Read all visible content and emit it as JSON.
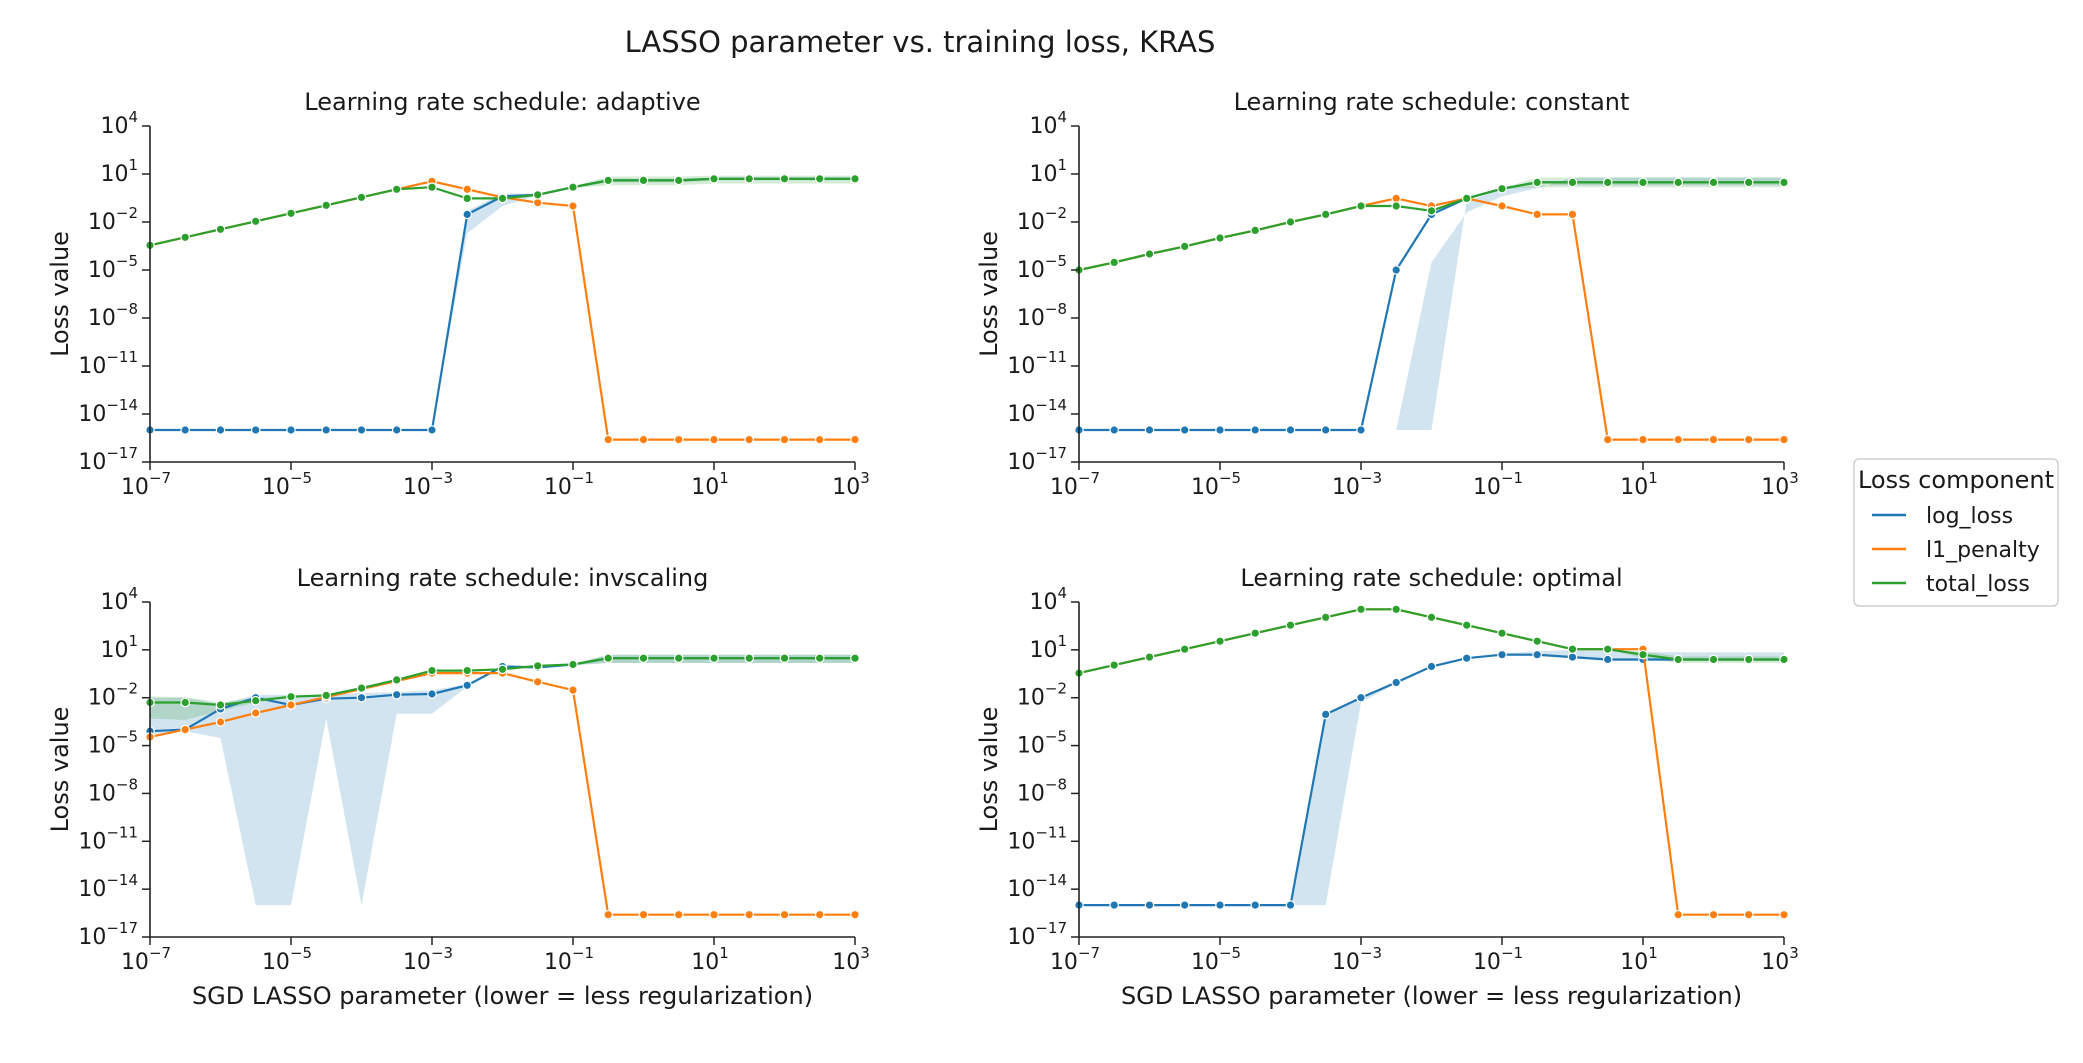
{
  "chart_data": {
    "type": "line",
    "title": "LASSO parameter vs. training loss, KRAS",
    "xscale": "log",
    "yscale": "log",
    "x": [
      1e-07,
      3.162e-07,
      1e-06,
      3.162e-06,
      1e-05,
      3.162e-05,
      0.0001,
      0.0003162,
      0.001,
      0.003162,
      0.01,
      0.03162,
      0.1,
      0.3162,
      1,
      3.162,
      10,
      31.62,
      100,
      316.2,
      1000
    ],
    "xlabel": "SGD LASSO parameter (lower = less regularization)",
    "ylabel": "Loss value",
    "xlim": [
      1e-07,
      1000
    ],
    "ylim": [
      1e-17,
      10000
    ],
    "xticks": [
      {
        "value": 1e-07,
        "base": "10",
        "exp": "−7"
      },
      {
        "value": 1e-05,
        "base": "10",
        "exp": "−5"
      },
      {
        "value": 0.001,
        "base": "10",
        "exp": "−3"
      },
      {
        "value": 0.1,
        "base": "10",
        "exp": "−1"
      },
      {
        "value": 10,
        "base": "10",
        "exp": "1"
      },
      {
        "value": 1000,
        "base": "10",
        "exp": "3"
      }
    ],
    "yticks": [
      {
        "value": 1e-17,
        "base": "10",
        "exp": "−17"
      },
      {
        "value": 1e-14,
        "base": "10",
        "exp": "−14"
      },
      {
        "value": 1e-11,
        "base": "10",
        "exp": "−11"
      },
      {
        "value": 1e-08,
        "base": "10",
        "exp": "−8"
      },
      {
        "value": 1e-05,
        "base": "10",
        "exp": "−5"
      },
      {
        "value": 0.01,
        "base": "10",
        "exp": "−2"
      },
      {
        "value": 10,
        "base": "10",
        "exp": "1"
      },
      {
        "value": 10000,
        "base": "10",
        "exp": "4"
      }
    ],
    "grid": false,
    "legend": {
      "title": "Loss component",
      "placement": "right",
      "entries": [
        {
          "name": "log_loss",
          "color": "#1f77b4"
        },
        {
          "name": "l1_penalty",
          "color": "#ff7f0e"
        },
        {
          "name": "total_loss",
          "color": "#2ca02c"
        }
      ]
    },
    "panels": [
      {
        "title": "Learning rate schedule: adaptive",
        "series": [
          {
            "name": "log_loss",
            "color": "#1f77b4",
            "values": [
              1e-15,
              1e-15,
              1e-15,
              1e-15,
              1e-15,
              1e-15,
              1e-15,
              1e-15,
              1e-15,
              0.03,
              0.4,
              0.5,
              1.5,
              4,
              4,
              4,
              5,
              5,
              5,
              5,
              5
            ],
            "band_low": [
              1e-15,
              1e-15,
              1e-15,
              1e-15,
              1e-15,
              1e-15,
              1e-15,
              1e-15,
              1e-15,
              0.002,
              0.1,
              0.45,
              1.3,
              3,
              3,
              3,
              4,
              4,
              4,
              4,
              4
            ],
            "band_high": [
              1e-15,
              1e-15,
              1e-15,
              1e-15,
              1e-15,
              1e-15,
              1e-15,
              1e-15,
              1e-15,
              0.05,
              0.6,
              0.6,
              1.7,
              5,
              5,
              5,
              6,
              6,
              6,
              6,
              6
            ]
          },
          {
            "name": "l1_penalty",
            "color": "#ff7f0e",
            "values": [
              0.00035,
              0.0011,
              0.0035,
              0.011,
              0.035,
              0.11,
              0.35,
              1.1,
              3.5,
              1.1,
              0.35,
              0.16,
              0.1,
              2.5e-16,
              2.5e-16,
              2.5e-16,
              2.5e-16,
              2.5e-16,
              2.5e-16,
              2.5e-16,
              2.5e-16
            ]
          },
          {
            "name": "total_loss",
            "color": "#2ca02c",
            "values": [
              0.00035,
              0.0011,
              0.0035,
              0.011,
              0.035,
              0.11,
              0.35,
              1.1,
              1.5,
              0.3,
              0.3,
              0.5,
              1.5,
              4,
              4,
              4,
              5,
              5,
              5,
              5,
              5
            ],
            "band_low": [
              0.00035,
              0.0011,
              0.0035,
              0.011,
              0.035,
              0.11,
              0.35,
              1.1,
              1.5,
              0.3,
              0.3,
              0.5,
              1.3,
              2,
              2,
              2,
              2.5,
              2.5,
              2.5,
              2.5,
              2.5
            ],
            "band_high": [
              0.00035,
              0.0011,
              0.0035,
              0.011,
              0.035,
              0.11,
              0.35,
              1.1,
              1.5,
              0.3,
              0.3,
              0.6,
              1.7,
              7,
              7,
              7,
              8,
              8,
              8,
              8,
              8
            ]
          }
        ]
      },
      {
        "title": "Learning rate schedule: constant",
        "series": [
          {
            "name": "log_loss",
            "color": "#1f77b4",
            "values": [
              1e-15,
              1e-15,
              1e-15,
              1e-15,
              1e-15,
              1e-15,
              1e-15,
              1e-15,
              1e-15,
              1e-05,
              0.03,
              0.3,
              1.2,
              3,
              3,
              3,
              3,
              3,
              3,
              3,
              3
            ],
            "band_low": [
              1e-15,
              1e-15,
              1e-15,
              1e-15,
              1e-15,
              1e-15,
              1e-15,
              1e-15,
              1e-15,
              1e-15,
              1e-15,
              0.2,
              1.1,
              2,
              2,
              2,
              2,
              2,
              2,
              2,
              2
            ],
            "band_high": [
              1e-15,
              1e-15,
              1e-15,
              1e-15,
              1e-15,
              1e-15,
              1e-15,
              1e-15,
              1e-15,
              1e-15,
              3e-05,
              0.04,
              0.4,
              1.3,
              6,
              6,
              6,
              6,
              6,
              6,
              6
            ]
          },
          {
            "name": "l1_penalty",
            "color": "#ff7f0e",
            "values": [
              1e-05,
              3e-05,
              0.0001,
              0.0003,
              0.001,
              0.003,
              0.01,
              0.03,
              0.1,
              0.3,
              0.1,
              0.3,
              0.1,
              0.03,
              0.03,
              2.5e-16,
              2.5e-16,
              2.5e-16,
              2.5e-16,
              2.5e-16,
              2.5e-16
            ]
          },
          {
            "name": "total_loss",
            "color": "#2ca02c",
            "values": [
              1e-05,
              3e-05,
              0.0001,
              0.0003,
              0.001,
              0.003,
              0.01,
              0.03,
              0.1,
              0.1,
              0.05,
              0.3,
              1.2,
              3,
              3,
              3,
              3,
              3,
              3,
              3,
              3
            ],
            "band_low": [
              1e-05,
              3e-05,
              0.0001,
              0.0003,
              0.001,
              0.003,
              0.01,
              0.03,
              0.1,
              0.1,
              0.05,
              0.25,
              1.1,
              1.5,
              1.5,
              1.5,
              1.5,
              1.5,
              1.5,
              1.5,
              1.5
            ],
            "band_high": [
              1e-05,
              3e-05,
              0.0001,
              0.0003,
              0.001,
              0.003,
              0.01,
              0.03,
              0.1,
              0.1,
              0.05,
              0.35,
              1.3,
              6,
              6,
              6,
              6,
              6,
              6,
              6,
              6
            ]
          }
        ]
      },
      {
        "title": "Learning rate schedule: invscaling",
        "series": [
          {
            "name": "log_loss",
            "color": "#1f77b4",
            "values": [
              8e-05,
              0.0001,
              0.002,
              0.01,
              0.0035,
              0.0087,
              0.01,
              0.0155,
              0.017,
              0.06,
              0.9,
              0.8,
              1.2,
              3,
              3,
              3,
              3,
              3,
              3,
              3,
              3
            ],
            "band_low": [
              5e-05,
              8e-05,
              3e-05,
              1e-15,
              1e-15,
              0.0005,
              1e-15,
              0.001,
              0.001,
              0.05,
              0.8,
              0.7,
              1.1,
              1.5,
              1.5,
              1.5,
              1.5,
              1.5,
              1.5,
              1.5,
              1.5
            ],
            "band_high": [
              0.01,
              0.01,
              0.004,
              0.015,
              0.015,
              0.015,
              0.02,
              0.022,
              0.03,
              0.07,
              1,
              0.9,
              1.3,
              5,
              5,
              5,
              5,
              5,
              5,
              5,
              5
            ]
          },
          {
            "name": "l1_penalty",
            "color": "#ff7f0e",
            "values": [
              3.5e-05,
              0.0001,
              0.0003,
              0.0011,
              0.0035,
              0.011,
              0.035,
              0.11,
              0.35,
              0.35,
              0.35,
              0.1,
              0.03,
              2.5e-16,
              2.5e-16,
              2.5e-16,
              2.5e-16,
              2.5e-16,
              2.5e-16,
              2.5e-16,
              2.5e-16
            ]
          },
          {
            "name": "total_loss",
            "color": "#2ca02c",
            "values": [
              0.005,
              0.005,
              0.0035,
              0.0065,
              0.0115,
              0.014,
              0.04,
              0.13,
              0.5,
              0.5,
              0.6,
              1,
              1.2,
              3,
              3,
              3,
              3,
              3,
              3,
              3,
              3
            ],
            "band_low": [
              0.0005,
              0.0004,
              0.0015,
              0.005,
              0.01,
              0.013,
              0.035,
              0.12,
              0.45,
              0.45,
              0.55,
              0.9,
              1.1,
              1.5,
              1.5,
              1.5,
              1.5,
              1.5,
              1.5,
              1.5,
              1.5
            ],
            "band_high": [
              0.012,
              0.011,
              0.005,
              0.01,
              0.013,
              0.015,
              0.045,
              0.14,
              0.55,
              0.55,
              0.65,
              1.1,
              1.3,
              5,
              5,
              5,
              5,
              5,
              5,
              5,
              5
            ]
          }
        ]
      },
      {
        "title": "Learning rate schedule: optimal",
        "series": [
          {
            "name": "log_loss",
            "color": "#1f77b4",
            "values": [
              1e-15,
              1e-15,
              1e-15,
              1e-15,
              1e-15,
              1e-15,
              1e-15,
              0.0009,
              0.01,
              0.09,
              0.9,
              3,
              5,
              5,
              3.5,
              2.5,
              2.5,
              2.5,
              2.5,
              2.5,
              2.5
            ],
            "band_low": [
              1e-15,
              1e-15,
              1e-15,
              1e-15,
              1e-15,
              1e-15,
              1e-15,
              1e-15,
              0.005,
              0.08,
              0.8,
              2.8,
              4.5,
              4,
              3,
              2,
              2,
              2,
              2,
              2,
              2
            ],
            "band_high": [
              1e-15,
              1e-15,
              1e-15,
              1e-15,
              1e-15,
              1e-15,
              1e-15,
              0.001,
              0.012,
              0.1,
              1,
              3.2,
              6,
              8,
              10,
              10,
              7,
              7,
              7,
              7,
              7
            ]
          },
          {
            "name": "l1_penalty",
            "color": "#ff7f0e",
            "values": [
              0.35,
              1.1,
              3.5,
              11,
              35,
              110,
              350,
              1100,
              3500,
              3500,
              1100,
              350,
              110,
              35,
              11,
              11,
              11,
              2.5e-16,
              2.5e-16,
              2.5e-16,
              2.5e-16
            ]
          },
          {
            "name": "total_loss",
            "color": "#2ca02c",
            "values": [
              0.35,
              1.1,
              3.5,
              11,
              35,
              110,
              350,
              1100,
              3500,
              3500,
              1100,
              350,
              110,
              35,
              11,
              11,
              5,
              2.5,
              2.5,
              2.5,
              2.5
            ],
            "band_low": [
              0.35,
              1.1,
              3.5,
              11,
              35,
              110,
              350,
              1100,
              3500,
              3500,
              1100,
              350,
              110,
              35,
              11,
              11,
              3,
              1.5,
              1.5,
              1.5,
              1.5
            ],
            "band_high": [
              0.35,
              1.1,
              3.5,
              11,
              35,
              110,
              350,
              1100,
              3500,
              3500,
              1100,
              350,
              110,
              35,
              11,
              11,
              8,
              4,
              4,
              4,
              4
            ]
          }
        ]
      }
    ]
  }
}
